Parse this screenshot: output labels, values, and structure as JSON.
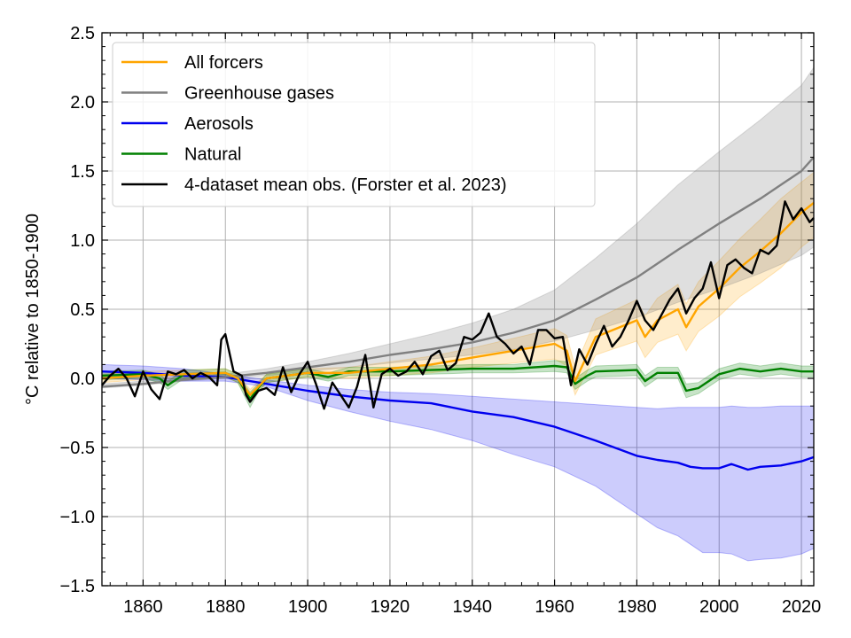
{
  "chart_data": {
    "type": "line",
    "title": "",
    "xlabel": "",
    "ylabel": "°C relative to 1850-1900",
    "xlim": [
      1850,
      2023
    ],
    "ylim": [
      -1.5,
      2.5
    ],
    "x_ticks": [
      1860,
      1880,
      1900,
      1920,
      1940,
      1960,
      1980,
      2000,
      2020
    ],
    "x_tick_labels": [
      "1860",
      "1880",
      "1900",
      "1920",
      "1940",
      "1960",
      "1980",
      "2000",
      "2020"
    ],
    "y_ticks": [
      -1.5,
      -1.0,
      -0.5,
      0.0,
      0.5,
      1.0,
      1.5,
      2.0,
      2.5
    ],
    "y_tick_labels": [
      "−1.5",
      "−1.0",
      "−0.5",
      "0.0",
      "0.5",
      "1.0",
      "1.5",
      "2.0",
      "2.5"
    ],
    "grid": true,
    "legend_position": "top-left",
    "series": [
      {
        "name": "All forcers",
        "color": "#ffa500",
        "x": [
          1850,
          1860,
          1870,
          1880,
          1883,
          1886,
          1890,
          1900,
          1910,
          1920,
          1930,
          1940,
          1950,
          1960,
          1963,
          1965,
          1970,
          1980,
          1982,
          1985,
          1990,
          1992,
          1995,
          2000,
          2005,
          2010,
          2015,
          2020,
          2023
        ],
        "y": [
          0.0,
          0.02,
          0.03,
          0.04,
          0.0,
          -0.12,
          0.0,
          0.04,
          0.04,
          0.07,
          0.1,
          0.15,
          0.2,
          0.25,
          0.2,
          -0.02,
          0.3,
          0.42,
          0.3,
          0.42,
          0.5,
          0.37,
          0.52,
          0.65,
          0.8,
          0.92,
          1.05,
          1.2,
          1.27
        ],
        "band_lower": [
          -0.03,
          -0.01,
          0.0,
          0.01,
          -0.03,
          -0.16,
          -0.03,
          0.01,
          0.0,
          0.02,
          0.04,
          0.08,
          0.11,
          0.14,
          0.09,
          -0.12,
          0.17,
          0.27,
          0.15,
          0.26,
          0.32,
          0.2,
          0.34,
          0.45,
          0.59,
          0.69,
          0.8,
          0.95,
          1.02
        ],
        "band_upper": [
          0.03,
          0.05,
          0.06,
          0.07,
          0.03,
          -0.08,
          0.03,
          0.07,
          0.08,
          0.12,
          0.16,
          0.22,
          0.29,
          0.36,
          0.31,
          0.08,
          0.43,
          0.57,
          0.45,
          0.58,
          0.68,
          0.54,
          0.7,
          0.85,
          1.01,
          1.15,
          1.3,
          1.42,
          1.49
        ]
      },
      {
        "name": "Greenhouse gases",
        "color": "#808080",
        "x": [
          1850,
          1860,
          1870,
          1880,
          1890,
          1900,
          1910,
          1920,
          1930,
          1940,
          1950,
          1960,
          1970,
          1980,
          1990,
          2000,
          2010,
          2020,
          2023
        ],
        "y": [
          -0.06,
          -0.04,
          -0.01,
          0.01,
          0.04,
          0.08,
          0.12,
          0.17,
          0.21,
          0.26,
          0.33,
          0.42,
          0.57,
          0.73,
          0.93,
          1.12,
          1.3,
          1.5,
          1.6
        ],
        "band_lower": [
          -0.07,
          -0.05,
          -0.02,
          0.0,
          0.02,
          0.05,
          0.08,
          0.11,
          0.14,
          0.17,
          0.21,
          0.27,
          0.35,
          0.44,
          0.55,
          0.65,
          0.76,
          0.89,
          0.95
        ],
        "band_upper": [
          -0.04,
          -0.02,
          0.01,
          0.03,
          0.07,
          0.12,
          0.18,
          0.25,
          0.32,
          0.4,
          0.5,
          0.64,
          0.87,
          1.12,
          1.4,
          1.64,
          1.87,
          2.12,
          2.25
        ]
      },
      {
        "name": "Aerosols",
        "color": "#0000ee",
        "x": [
          1850,
          1860,
          1870,
          1880,
          1890,
          1900,
          1910,
          1920,
          1930,
          1940,
          1950,
          1960,
          1970,
          1980,
          1985,
          1990,
          1993,
          1996,
          2000,
          2003,
          2007,
          2010,
          2015,
          2020,
          2023
        ],
        "y": [
          0.05,
          0.04,
          0.02,
          0.01,
          -0.04,
          -0.09,
          -0.13,
          -0.16,
          -0.18,
          -0.24,
          -0.28,
          -0.35,
          -0.45,
          -0.56,
          -0.59,
          -0.61,
          -0.64,
          -0.65,
          -0.65,
          -0.62,
          -0.66,
          -0.64,
          -0.63,
          -0.6,
          -0.57
        ],
        "band_lower": [
          0.0,
          -0.01,
          -0.02,
          -0.02,
          -0.06,
          -0.16,
          -0.24,
          -0.31,
          -0.37,
          -0.45,
          -0.55,
          -0.64,
          -0.78,
          -0.98,
          -1.08,
          -1.14,
          -1.2,
          -1.26,
          -1.26,
          -1.27,
          -1.32,
          -1.31,
          -1.3,
          -1.27,
          -1.23
        ],
        "band_upper": [
          0.1,
          0.09,
          0.07,
          0.03,
          -0.01,
          -0.05,
          -0.08,
          -0.1,
          -0.11,
          -0.13,
          -0.15,
          -0.17,
          -0.19,
          -0.21,
          -0.22,
          -0.21,
          -0.21,
          -0.21,
          -0.21,
          -0.2,
          -0.21,
          -0.21,
          -0.2,
          -0.2,
          -0.2
        ]
      },
      {
        "name": "Natural",
        "color": "#008000",
        "x": [
          1850,
          1860,
          1864,
          1866,
          1870,
          1880,
          1883,
          1886,
          1888,
          1890,
          1900,
          1905,
          1910,
          1920,
          1930,
          1940,
          1950,
          1960,
          1963,
          1965,
          1968,
          1970,
          1980,
          1982,
          1985,
          1990,
          1992,
          1995,
          2000,
          2005,
          2010,
          2015,
          2020,
          2023
        ],
        "y": [
          0.02,
          0.03,
          0.0,
          -0.05,
          0.03,
          0.04,
          0.0,
          -0.15,
          -0.07,
          0.0,
          0.04,
          0.01,
          0.05,
          0.05,
          0.06,
          0.07,
          0.07,
          0.09,
          0.08,
          -0.04,
          0.02,
          0.05,
          0.06,
          -0.02,
          0.04,
          0.04,
          -0.09,
          -0.07,
          0.03,
          0.07,
          0.05,
          0.07,
          0.05,
          0.05
        ],
        "band_lower": [
          -0.01,
          0.0,
          -0.03,
          -0.08,
          0.0,
          0.01,
          -0.03,
          -0.21,
          -0.1,
          -0.03,
          0.01,
          -0.02,
          0.02,
          0.02,
          0.03,
          0.04,
          0.04,
          0.05,
          0.04,
          -0.08,
          -0.02,
          0.01,
          0.02,
          -0.06,
          0.0,
          0.0,
          -0.14,
          -0.11,
          -0.01,
          0.03,
          0.01,
          0.03,
          0.01,
          0.01
        ],
        "band_upper": [
          0.05,
          0.06,
          0.03,
          -0.02,
          0.06,
          0.07,
          0.03,
          -0.1,
          -0.04,
          0.03,
          0.07,
          0.04,
          0.08,
          0.08,
          0.09,
          0.1,
          0.1,
          0.13,
          0.12,
          0.0,
          0.06,
          0.09,
          0.1,
          0.02,
          0.08,
          0.08,
          -0.04,
          -0.03,
          0.07,
          0.11,
          0.09,
          0.11,
          0.09,
          0.09
        ]
      },
      {
        "name": "4-dataset mean obs. (Forster et al. 2023)",
        "color": "#000000",
        "x": [
          1850,
          1852,
          1854,
          1856,
          1858,
          1860,
          1862,
          1864,
          1866,
          1868,
          1870,
          1872,
          1874,
          1876,
          1878,
          1879,
          1880,
          1882,
          1884,
          1885,
          1886,
          1888,
          1890,
          1892,
          1894,
          1896,
          1898,
          1900,
          1902,
          1904,
          1906,
          1908,
          1910,
          1912,
          1914,
          1916,
          1918,
          1920,
          1922,
          1924,
          1926,
          1928,
          1930,
          1932,
          1934,
          1936,
          1938,
          1940,
          1942,
          1944,
          1946,
          1948,
          1950,
          1952,
          1954,
          1956,
          1958,
          1960,
          1962,
          1964,
          1966,
          1968,
          1970,
          1972,
          1974,
          1976,
          1978,
          1980,
          1982,
          1984,
          1986,
          1988,
          1990,
          1992,
          1994,
          1996,
          1998,
          2000,
          2002,
          2004,
          2006,
          2008,
          2010,
          2012,
          2014,
          2016,
          2018,
          2020,
          2022,
          2023
        ],
        "y": [
          -0.05,
          0.02,
          0.07,
          0.0,
          -0.13,
          0.05,
          -0.08,
          -0.15,
          0.05,
          0.03,
          0.06,
          0.0,
          0.04,
          0.01,
          -0.05,
          0.28,
          0.32,
          0.05,
          0.02,
          -0.12,
          -0.17,
          -0.09,
          -0.07,
          -0.12,
          0.08,
          -0.1,
          0.03,
          0.12,
          -0.04,
          -0.22,
          -0.03,
          -0.12,
          -0.21,
          -0.06,
          0.17,
          -0.21,
          0.03,
          0.07,
          0.02,
          0.05,
          0.12,
          0.03,
          0.16,
          0.2,
          0.06,
          0.11,
          0.3,
          0.28,
          0.33,
          0.47,
          0.3,
          0.25,
          0.18,
          0.23,
          0.1,
          0.35,
          0.35,
          0.29,
          0.3,
          -0.05,
          0.21,
          0.1,
          0.25,
          0.38,
          0.23,
          0.3,
          0.42,
          0.56,
          0.42,
          0.35,
          0.46,
          0.57,
          0.65,
          0.47,
          0.58,
          0.65,
          0.84,
          0.58,
          0.82,
          0.86,
          0.8,
          0.76,
          0.93,
          0.9,
          0.96,
          1.28,
          1.15,
          1.23,
          1.13,
          1.16
        ]
      }
    ]
  }
}
